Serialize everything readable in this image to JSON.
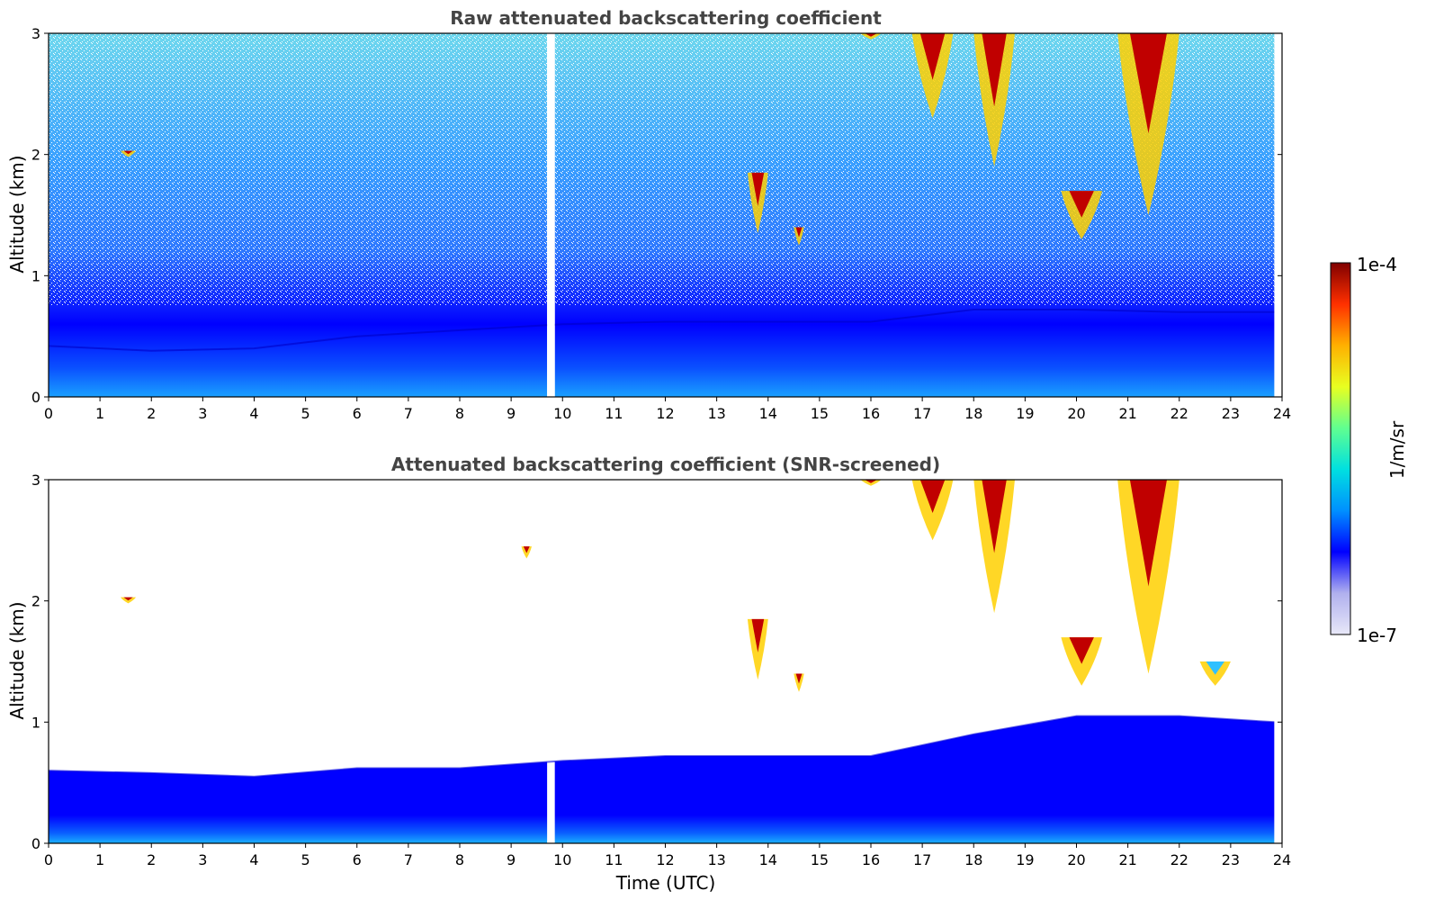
{
  "chart_data": [
    {
      "type": "heatmap",
      "title": "Raw attenuated backscattering coefficient",
      "xlabel": "",
      "ylabel": "Altitude (km)",
      "xlim": [
        0,
        24
      ],
      "ylim": [
        0,
        3
      ],
      "x_ticks": [
        "0",
        "1",
        "2",
        "3",
        "4",
        "5",
        "6",
        "7",
        "8",
        "9",
        "10",
        "11",
        "12",
        "13",
        "14",
        "15",
        "16",
        "17",
        "18",
        "19",
        "20",
        "21",
        "22",
        "23",
        "24"
      ],
      "y_ticks": [
        "0",
        "1",
        "2",
        "3"
      ],
      "data_gap_utc": [
        9.7,
        9.85
      ],
      "data_end_utc": 23.85,
      "screening": "none",
      "boundary_layer_top_km": [
        {
          "time_utc": 0,
          "value": 0.42
        },
        {
          "time_utc": 2,
          "value": 0.38
        },
        {
          "time_utc": 4,
          "value": 0.4
        },
        {
          "time_utc": 6,
          "value": 0.5
        },
        {
          "time_utc": 8,
          "value": 0.55
        },
        {
          "time_utc": 10,
          "value": 0.6
        },
        {
          "time_utc": 12,
          "value": 0.62
        },
        {
          "time_utc": 14,
          "value": 0.62
        },
        {
          "time_utc": 16,
          "value": 0.62
        },
        {
          "time_utc": 18,
          "value": 0.72
        },
        {
          "time_utc": 20,
          "value": 0.72
        },
        {
          "time_utc": 22,
          "value": 0.7
        },
        {
          "time_utc": 23.85,
          "value": 0.7
        }
      ],
      "cloud_features": [
        {
          "time_start": 15.8,
          "time_end": 16.2,
          "alt_bottom_km": 2.95,
          "alt_top_km": 3.0,
          "intensity": "high"
        },
        {
          "time_start": 16.8,
          "time_end": 17.6,
          "alt_bottom_km": 2.3,
          "alt_top_km": 3.0,
          "intensity": "high"
        },
        {
          "time_start": 18.0,
          "time_end": 18.8,
          "alt_bottom_km": 1.9,
          "alt_top_km": 3.0,
          "intensity": "high"
        },
        {
          "time_start": 20.8,
          "time_end": 22.0,
          "alt_bottom_km": 1.5,
          "alt_top_km": 3.0,
          "intensity": "high"
        },
        {
          "time_start": 19.7,
          "time_end": 20.5,
          "alt_bottom_km": 1.3,
          "alt_top_km": 1.7,
          "intensity": "high"
        },
        {
          "time_start": 13.6,
          "time_end": 14.0,
          "alt_bottom_km": 1.35,
          "alt_top_km": 1.85,
          "intensity": "high"
        },
        {
          "time_start": 14.5,
          "time_end": 14.7,
          "alt_bottom_km": 1.25,
          "alt_top_km": 1.4,
          "intensity": "high"
        },
        {
          "time_start": 1.4,
          "time_end": 1.7,
          "alt_bottom_km": 1.98,
          "alt_top_km": 2.03,
          "intensity": "high"
        }
      ]
    },
    {
      "type": "heatmap",
      "title": "Attenuated backscattering coefficient (SNR-screened)",
      "xlabel": "Time (UTC)",
      "ylabel": "Altitude (km)",
      "xlim": [
        0,
        24
      ],
      "ylim": [
        0,
        3
      ],
      "x_ticks": [
        "0",
        "1",
        "2",
        "3",
        "4",
        "5",
        "6",
        "7",
        "8",
        "9",
        "10",
        "11",
        "12",
        "13",
        "14",
        "15",
        "16",
        "17",
        "18",
        "19",
        "20",
        "21",
        "22",
        "23",
        "24"
      ],
      "y_ticks": [
        "0",
        "1",
        "2",
        "3"
      ],
      "data_gap_utc": [
        9.7,
        9.85
      ],
      "data_end_utc": 23.85,
      "screening": "SNR",
      "boundary_layer_top_km": [
        {
          "time_utc": 0,
          "value": 0.6
        },
        {
          "time_utc": 2,
          "value": 0.58
        },
        {
          "time_utc": 4,
          "value": 0.55
        },
        {
          "time_utc": 6,
          "value": 0.62
        },
        {
          "time_utc": 8,
          "value": 0.62
        },
        {
          "time_utc": 10,
          "value": 0.68
        },
        {
          "time_utc": 12,
          "value": 0.72
        },
        {
          "time_utc": 14,
          "value": 0.72
        },
        {
          "time_utc": 16,
          "value": 0.72
        },
        {
          "time_utc": 18,
          "value": 0.9
        },
        {
          "time_utc": 20,
          "value": 1.05
        },
        {
          "time_utc": 22,
          "value": 1.05
        },
        {
          "time_utc": 23.85,
          "value": 1.0
        }
      ],
      "cloud_features": [
        {
          "time_start": 15.8,
          "time_end": 16.2,
          "alt_bottom_km": 2.95,
          "alt_top_km": 3.0,
          "intensity": "high"
        },
        {
          "time_start": 16.8,
          "time_end": 17.6,
          "alt_bottom_km": 2.5,
          "alt_top_km": 3.0,
          "intensity": "high"
        },
        {
          "time_start": 18.0,
          "time_end": 18.8,
          "alt_bottom_km": 1.9,
          "alt_top_km": 3.0,
          "intensity": "high"
        },
        {
          "time_start": 20.8,
          "time_end": 22.0,
          "alt_bottom_km": 1.4,
          "alt_top_km": 3.0,
          "intensity": "high"
        },
        {
          "time_start": 19.7,
          "time_end": 20.5,
          "alt_bottom_km": 1.3,
          "alt_top_km": 1.7,
          "intensity": "high"
        },
        {
          "time_start": 13.6,
          "time_end": 14.0,
          "alt_bottom_km": 1.35,
          "alt_top_km": 1.85,
          "intensity": "high"
        },
        {
          "time_start": 14.5,
          "time_end": 14.7,
          "alt_bottom_km": 1.25,
          "alt_top_km": 1.4,
          "intensity": "high"
        },
        {
          "time_start": 22.4,
          "time_end": 23.0,
          "alt_bottom_km": 1.3,
          "alt_top_km": 1.5,
          "intensity": "medium"
        },
        {
          "time_start": 1.4,
          "time_end": 1.7,
          "alt_bottom_km": 1.98,
          "alt_top_km": 2.03,
          "intensity": "high"
        },
        {
          "time_start": 9.2,
          "time_end": 9.4,
          "alt_bottom_km": 2.35,
          "alt_top_km": 2.45,
          "intensity": "high"
        }
      ]
    }
  ],
  "colorbar": {
    "label": "1/m/sr",
    "max_label": "1e-4",
    "min_label": "1e-7",
    "scale": "log",
    "colors": [
      "#e8e8f8",
      "#b0b0ee",
      "#0000ff",
      "#0090ff",
      "#00e0e0",
      "#60ff90",
      "#e8ff20",
      "#ffb000",
      "#ff3000",
      "#800000"
    ]
  }
}
